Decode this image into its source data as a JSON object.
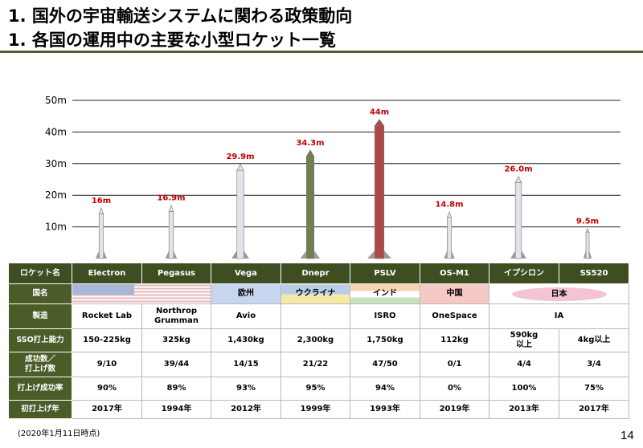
{
  "title_line1": "1.  国外の宇宙輸送システムに関わる政策動向",
  "title_line2": "1. 各国の運用中の主要な小型ロケット一覧",
  "chart_data": {
    "type": "bar",
    "y_ticks": [
      "10m",
      "20m",
      "30m",
      "40m",
      "50m"
    ],
    "ylim": [
      0,
      50
    ],
    "grid": true,
    "categories": [
      "Electron",
      "Pegasus",
      "Vega",
      "Dnepr",
      "PSLV",
      "OS-M1",
      "イプシロン",
      "SS520"
    ],
    "values": [
      16,
      16.9,
      29.9,
      34.3,
      44,
      14.8,
      26.0,
      9.5
    ],
    "value_labels": [
      "16m",
      "16.9m",
      "29.9m",
      "34.3m",
      "44m",
      "14.8m",
      "26.0m",
      "9.5m"
    ],
    "label_color": "#c00000"
  },
  "table": {
    "row_headers": {
      "name": "ロケット名",
      "country": "国名",
      "manufacturer": "製造",
      "sso": "SSO打上能力",
      "count": "成功数／\n打上げ数",
      "rate": "打上げ成功率",
      "first": "初打上げ年"
    },
    "rockets": [
      "Electron",
      "Pegasus",
      "Vega",
      "Dnepr",
      "PSLV",
      "OS-M1",
      "イプシロン",
      "SS520"
    ],
    "countries": {
      "eu": "欧州",
      "ua": "ウクライナ",
      "in": "インド",
      "cn": "中国",
      "jp": "日本"
    },
    "manufacturers": [
      "Rocket Lab",
      "Northrop\nGrumman",
      "Avio",
      "",
      "ISRO",
      "OneSpace",
      "IA"
    ],
    "sso": [
      "150-225kg",
      "325kg",
      "1,430kg",
      "2,300kg",
      "1,750kg",
      "112kg",
      "590kg\n以上",
      "4kg以上"
    ],
    "count": [
      "9/10",
      "39/44",
      "14/15",
      "21/22",
      "47/50",
      "0/1",
      "4/4",
      "3/4"
    ],
    "rate": [
      "90%",
      "89%",
      "93%",
      "95%",
      "94%",
      "0%",
      "100%",
      "75%"
    ],
    "first": [
      "2017年",
      "1994年",
      "2012年",
      "1999年",
      "1993年",
      "2019年",
      "2013年",
      "2017年"
    ]
  },
  "colors": {
    "accent": "#4c5f2a",
    "header_bg": "#3e4e21"
  },
  "note": "(2020年1月11日時点)",
  "page_number": "14"
}
